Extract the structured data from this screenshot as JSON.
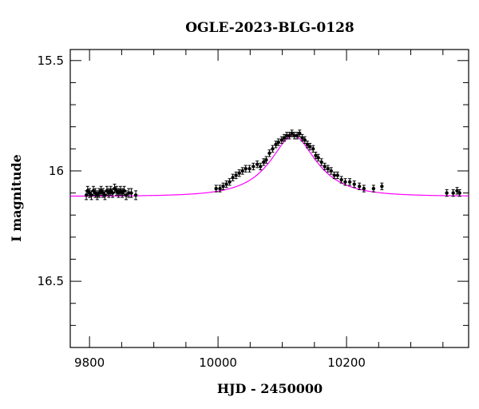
{
  "chart_data": {
    "type": "scatter",
    "title": "OGLE-2023-BLG-0128",
    "xlabel": "HJD - 2450000",
    "ylabel": "I magnitude",
    "xlim": [
      9770,
      10390
    ],
    "ylim": [
      16.8,
      15.45
    ],
    "y_inverted": true,
    "grid": false,
    "legend": "none",
    "x_ticks": [
      9800,
      10000,
      10200
    ],
    "x_tick_labels": [
      "9800",
      "10000",
      "10200"
    ],
    "y_ticks": [
      15.5,
      16,
      16.5
    ],
    "y_tick_labels": [
      "15.5",
      "16",
      "16.5"
    ],
    "model_color": "#ff00ff",
    "point_color": "#000000",
    "model": {
      "peak_time": 10117,
      "baseline_mag": 16.115,
      "peak_mag": 15.84
    },
    "series": [
      {
        "points": [
          {
            "x": 9795,
            "y": 16.11,
            "err": 0.02
          },
          {
            "x": 9797,
            "y": 16.09,
            "err": 0.02
          },
          {
            "x": 9800,
            "y": 16.1,
            "err": 0.02
          },
          {
            "x": 9803,
            "y": 16.11,
            "err": 0.02
          },
          {
            "x": 9806,
            "y": 16.09,
            "err": 0.02
          },
          {
            "x": 9809,
            "y": 16.1,
            "err": 0.02
          },
          {
            "x": 9812,
            "y": 16.11,
            "err": 0.02
          },
          {
            "x": 9815,
            "y": 16.1,
            "err": 0.02
          },
          {
            "x": 9818,
            "y": 16.09,
            "err": 0.02
          },
          {
            "x": 9821,
            "y": 16.1,
            "err": 0.02
          },
          {
            "x": 9824,
            "y": 16.11,
            "err": 0.02
          },
          {
            "x": 9827,
            "y": 16.09,
            "err": 0.02
          },
          {
            "x": 9830,
            "y": 16.1,
            "err": 0.02
          },
          {
            "x": 9833,
            "y": 16.09,
            "err": 0.02
          },
          {
            "x": 9836,
            "y": 16.1,
            "err": 0.02
          },
          {
            "x": 9839,
            "y": 16.08,
            "err": 0.02
          },
          {
            "x": 9842,
            "y": 16.09,
            "err": 0.02
          },
          {
            "x": 9845,
            "y": 16.1,
            "err": 0.02
          },
          {
            "x": 9848,
            "y": 16.09,
            "err": 0.02
          },
          {
            "x": 9851,
            "y": 16.1,
            "err": 0.02
          },
          {
            "x": 9854,
            "y": 16.09,
            "err": 0.02
          },
          {
            "x": 9857,
            "y": 16.11,
            "err": 0.02
          },
          {
            "x": 9861,
            "y": 16.1,
            "err": 0.02
          },
          {
            "x": 9865,
            "y": 16.1,
            "err": 0.02
          },
          {
            "x": 9872,
            "y": 16.11,
            "err": 0.02
          },
          {
            "x": 9997,
            "y": 16.08,
            "err": 0.015
          },
          {
            "x": 10003,
            "y": 16.08,
            "err": 0.015
          },
          {
            "x": 10008,
            "y": 16.07,
            "err": 0.015
          },
          {
            "x": 10013,
            "y": 16.06,
            "err": 0.015
          },
          {
            "x": 10018,
            "y": 16.05,
            "err": 0.015
          },
          {
            "x": 10023,
            "y": 16.03,
            "err": 0.015
          },
          {
            "x": 10028,
            "y": 16.02,
            "err": 0.015
          },
          {
            "x": 10033,
            "y": 16.01,
            "err": 0.015
          },
          {
            "x": 10038,
            "y": 16.0,
            "err": 0.015
          },
          {
            "x": 10043,
            "y": 15.99,
            "err": 0.015
          },
          {
            "x": 10049,
            "y": 15.99,
            "err": 0.015
          },
          {
            "x": 10055,
            "y": 15.98,
            "err": 0.015
          },
          {
            "x": 10061,
            "y": 15.97,
            "err": 0.015
          },
          {
            "x": 10066,
            "y": 15.98,
            "err": 0.015
          },
          {
            "x": 10071,
            "y": 15.96,
            "err": 0.015
          },
          {
            "x": 10075,
            "y": 15.95,
            "err": 0.015
          },
          {
            "x": 10080,
            "y": 15.92,
            "err": 0.015
          },
          {
            "x": 10085,
            "y": 15.9,
            "err": 0.015
          },
          {
            "x": 10090,
            "y": 15.88,
            "err": 0.015
          },
          {
            "x": 10094,
            "y": 15.87,
            "err": 0.015
          },
          {
            "x": 10099,
            "y": 15.86,
            "err": 0.015
          },
          {
            "x": 10103,
            "y": 15.85,
            "err": 0.015
          },
          {
            "x": 10107,
            "y": 15.84,
            "err": 0.015
          },
          {
            "x": 10111,
            "y": 15.84,
            "err": 0.015
          },
          {
            "x": 10115,
            "y": 15.83,
            "err": 0.015
          },
          {
            "x": 10119,
            "y": 15.84,
            "err": 0.015
          },
          {
            "x": 10123,
            "y": 15.84,
            "err": 0.015
          },
          {
            "x": 10127,
            "y": 15.83,
            "err": 0.015
          },
          {
            "x": 10131,
            "y": 15.85,
            "err": 0.015
          },
          {
            "x": 10135,
            "y": 15.86,
            "err": 0.015
          },
          {
            "x": 10139,
            "y": 15.88,
            "err": 0.015
          },
          {
            "x": 10143,
            "y": 15.89,
            "err": 0.015
          },
          {
            "x": 10148,
            "y": 15.9,
            "err": 0.015
          },
          {
            "x": 10152,
            "y": 15.93,
            "err": 0.015
          },
          {
            "x": 10156,
            "y": 15.94,
            "err": 0.015
          },
          {
            "x": 10161,
            "y": 15.96,
            "err": 0.015
          },
          {
            "x": 10166,
            "y": 15.98,
            "err": 0.015
          },
          {
            "x": 10171,
            "y": 15.99,
            "err": 0.015
          },
          {
            "x": 10176,
            "y": 16.0,
            "err": 0.015
          },
          {
            "x": 10181,
            "y": 16.02,
            "err": 0.015
          },
          {
            "x": 10186,
            "y": 16.02,
            "err": 0.015
          },
          {
            "x": 10192,
            "y": 16.04,
            "err": 0.015
          },
          {
            "x": 10198,
            "y": 16.05,
            "err": 0.015
          },
          {
            "x": 10205,
            "y": 16.05,
            "err": 0.015
          },
          {
            "x": 10212,
            "y": 16.06,
            "err": 0.015
          },
          {
            "x": 10220,
            "y": 16.07,
            "err": 0.015
          },
          {
            "x": 10227,
            "y": 16.08,
            "err": 0.015
          },
          {
            "x": 10242,
            "y": 16.08,
            "err": 0.015
          },
          {
            "x": 10255,
            "y": 16.07,
            "err": 0.015
          },
          {
            "x": 10356,
            "y": 16.1,
            "err": 0.015
          },
          {
            "x": 10366,
            "y": 16.1,
            "err": 0.015
          },
          {
            "x": 10372,
            "y": 16.09,
            "err": 0.015
          },
          {
            "x": 10376,
            "y": 16.1,
            "err": 0.015
          }
        ]
      }
    ]
  }
}
